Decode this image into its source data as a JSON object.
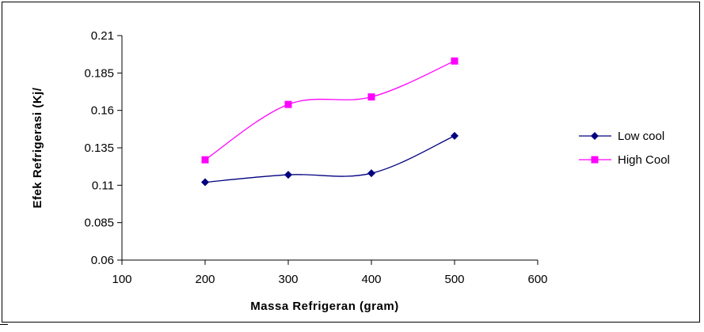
{
  "chart_data": {
    "type": "line",
    "title": "",
    "xlabel": "Massa Refrigeran (gram)",
    "ylabel": "Efek Refrigerasi (Kj/",
    "xlim": [
      100,
      600
    ],
    "ylim": [
      0.06,
      0.21
    ],
    "x_ticks": [
      "100",
      "200",
      "300",
      "400",
      "500",
      "600"
    ],
    "y_ticks": [
      "0.06",
      "0.085",
      "0.11",
      "0.135",
      "0.16",
      "0.185",
      "0.21"
    ],
    "x_tick_values": [
      100,
      200,
      300,
      400,
      500,
      600
    ],
    "y_tick_values": [
      0.06,
      0.085,
      0.11,
      0.135,
      0.16,
      0.185,
      0.21
    ],
    "grid": false,
    "legend_position": "right",
    "series": [
      {
        "name": "Low cool",
        "color": "#000080",
        "marker": "diamond",
        "x": [
          200,
          300,
          400,
          500
        ],
        "values": [
          0.112,
          0.117,
          0.118,
          0.143
        ]
      },
      {
        "name": "High Cool",
        "color": "#ff00ff",
        "marker": "square",
        "x": [
          200,
          300,
          400,
          500
        ],
        "values": [
          0.127,
          0.164,
          0.169,
          0.193
        ]
      }
    ]
  }
}
